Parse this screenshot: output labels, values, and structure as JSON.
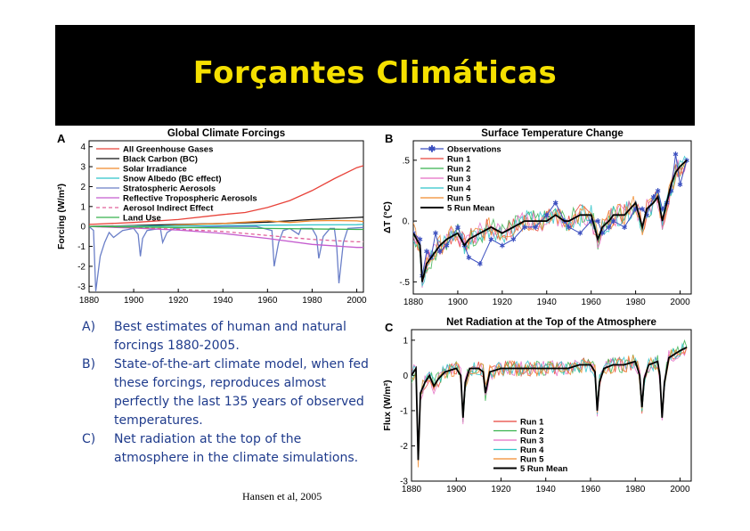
{
  "banner": {
    "title": "Forçantes Climáticas"
  },
  "notes": [
    {
      "letter": "A)",
      "text": "Best estimates of human and natural forcings 1880-2005."
    },
    {
      "letter": "B)",
      "text": "State-of-the-art climate model, when fed these forcings, reproduces almost perfectly the last 135 years of observed temperatures."
    },
    {
      "letter": "C)",
      "text": "Net radiation at the top of the atmosphere in the climate simulations."
    }
  ],
  "citation": "Hansen et al, 2005",
  "chart_data": [
    {
      "panel": "A",
      "type": "line",
      "title": "Global Climate Forcings",
      "xlabel": "",
      "ylabel": "Forcing (W/m²)",
      "xlim": [
        1880,
        2003
      ],
      "ylim": [
        -3.3,
        4.3
      ],
      "xticks": [
        1880,
        1900,
        1920,
        1940,
        1960,
        1980,
        2000
      ],
      "yticks": [
        -3,
        -2,
        -1,
        0,
        1,
        2,
        3,
        4
      ],
      "legend_position": "top-left",
      "series": [
        {
          "name": "All Greenhouse Gases",
          "color": "#e8433a",
          "dash": false,
          "points": [
            [
              1880,
              0.1
            ],
            [
              1900,
              0.2
            ],
            [
              1920,
              0.35
            ],
            [
              1940,
              0.6
            ],
            [
              1950,
              0.7
            ],
            [
              1960,
              0.95
            ],
            [
              1970,
              1.3
            ],
            [
              1980,
              1.8
            ],
            [
              1990,
              2.4
            ],
            [
              2000,
              2.95
            ],
            [
              2003,
              3.05
            ]
          ]
        },
        {
          "name": "Black Carbon (BC)",
          "color": "#111111",
          "dash": false,
          "points": [
            [
              1880,
              0.0
            ],
            [
              1900,
              0.05
            ],
            [
              1920,
              0.1
            ],
            [
              1940,
              0.15
            ],
            [
              1960,
              0.22
            ],
            [
              1980,
              0.35
            ],
            [
              2000,
              0.45
            ],
            [
              2003,
              0.47
            ]
          ]
        },
        {
          "name": "Solar Irradiance",
          "color": "#f08a2c",
          "dash": false,
          "points": [
            [
              1880,
              0.0
            ],
            [
              1900,
              0.03
            ],
            [
              1910,
              0.0
            ],
            [
              1920,
              0.08
            ],
            [
              1940,
              0.15
            ],
            [
              1950,
              0.22
            ],
            [
              1960,
              0.28
            ],
            [
              1970,
              0.2
            ],
            [
              1980,
              0.28
            ],
            [
              1990,
              0.3
            ],
            [
              2000,
              0.28
            ],
            [
              2003,
              0.25
            ]
          ]
        },
        {
          "name": "Snow Albedo (BC effect)",
          "color": "#2fc4c9",
          "dash": false,
          "points": [
            [
              1880,
              0.0
            ],
            [
              1920,
              0.03
            ],
            [
              1960,
              0.06
            ],
            [
              1980,
              0.08
            ],
            [
              2000,
              0.09
            ],
            [
              2003,
              0.1
            ]
          ]
        },
        {
          "name": "Stratospheric Aerosols",
          "color": "#6a7fc8",
          "dash": false,
          "points": [
            [
              1880,
              0.0
            ],
            [
              1882,
              -0.2
            ],
            [
              1883,
              -3.25
            ],
            [
              1885,
              -1.5
            ],
            [
              1887,
              -0.8
            ],
            [
              1889,
              -0.3
            ],
            [
              1891,
              -0.55
            ],
            [
              1895,
              -0.2
            ],
            [
              1900,
              -0.1
            ],
            [
              1902,
              -0.4
            ],
            [
              1903,
              -1.5
            ],
            [
              1904,
              -0.6
            ],
            [
              1906,
              -0.2
            ],
            [
              1912,
              -0.1
            ],
            [
              1913,
              -0.8
            ],
            [
              1915,
              -0.3
            ],
            [
              1918,
              -0.1
            ],
            [
              1925,
              -0.05
            ],
            [
              1940,
              0.0
            ],
            [
              1955,
              0.0
            ],
            [
              1962,
              -0.2
            ],
            [
              1963,
              -2.0
            ],
            [
              1965,
              -0.8
            ],
            [
              1967,
              -0.2
            ],
            [
              1970,
              -0.1
            ],
            [
              1974,
              -0.4
            ],
            [
              1975,
              -0.1
            ],
            [
              1980,
              -0.1
            ],
            [
              1982,
              -0.5
            ],
            [
              1983,
              -1.6
            ],
            [
              1985,
              -0.5
            ],
            [
              1988,
              -0.1
            ],
            [
              1990,
              -0.1
            ],
            [
              1991,
              -1.0
            ],
            [
              1992,
              -2.85
            ],
            [
              1994,
              -0.8
            ],
            [
              1996,
              -0.1
            ],
            [
              2003,
              -0.05
            ]
          ]
        },
        {
          "name": "Reflective Tropospheric Aerosols",
          "color": "#c45ccf",
          "dash": false,
          "points": [
            [
              1880,
              0.0
            ],
            [
              1900,
              -0.08
            ],
            [
              1920,
              -0.18
            ],
            [
              1940,
              -0.35
            ],
            [
              1960,
              -0.6
            ],
            [
              1980,
              -0.9
            ],
            [
              2000,
              -1.05
            ],
            [
              2003,
              -1.05
            ]
          ]
        },
        {
          "name": "Aerosol Indirect Effect",
          "color": "#e0609a",
          "dash": true,
          "points": [
            [
              1880,
              0.0
            ],
            [
              1900,
              -0.06
            ],
            [
              1920,
              -0.14
            ],
            [
              1940,
              -0.25
            ],
            [
              1960,
              -0.45
            ],
            [
              1980,
              -0.65
            ],
            [
              2000,
              -0.77
            ],
            [
              2003,
              -0.77
            ]
          ]
        },
        {
          "name": "Land Use",
          "color": "#38b24d",
          "dash": false,
          "points": [
            [
              1880,
              0.0
            ],
            [
              1920,
              -0.05
            ],
            [
              1960,
              -0.1
            ],
            [
              2000,
              -0.15
            ],
            [
              2003,
              -0.15
            ]
          ]
        }
      ]
    },
    {
      "panel": "B",
      "type": "line",
      "title": "Surface Temperature Change",
      "xlabel": "",
      "ylabel": "ΔT (°C)",
      "xlim": [
        1880,
        2005
      ],
      "ylim": [
        -0.6,
        0.66
      ],
      "xticks": [
        1880,
        1900,
        1920,
        1940,
        1960,
        1980,
        2000
      ],
      "yticks": [
        -0.5,
        0.0,
        0.5
      ],
      "ytick_labels": [
        "-.5",
        "0.",
        ".5"
      ],
      "legend_position": "top-left",
      "legend": [
        {
          "name": "Observations",
          "color": "#3b4fbf"
        },
        {
          "name": "Run 1",
          "color": "#e8433a"
        },
        {
          "name": "Run 2",
          "color": "#38b24d"
        },
        {
          "name": "Run 3",
          "color": "#e56cc4"
        },
        {
          "name": "Run 4",
          "color": "#2fc4c9"
        },
        {
          "name": "Run 5",
          "color": "#f08a2c"
        },
        {
          "name": "5 Run Mean",
          "color": "#000000"
        }
      ],
      "x": [
        1880,
        1883,
        1884,
        1886,
        1888,
        1890,
        1892,
        1895,
        1900,
        1903,
        1905,
        1910,
        1915,
        1920,
        1925,
        1930,
        1935,
        1940,
        1944,
        1948,
        1950,
        1955,
        1960,
        1963,
        1965,
        1968,
        1970,
        1975,
        1980,
        1983,
        1985,
        1988,
        1990,
        1992,
        1994,
        1996,
        1998,
        2000,
        2003
      ],
      "series": [
        {
          "name": "Observations",
          "color": "#3b4fbf",
          "values": [
            -0.1,
            -0.15,
            -0.45,
            -0.25,
            -0.3,
            -0.1,
            -0.25,
            -0.2,
            -0.05,
            -0.2,
            -0.3,
            -0.35,
            -0.15,
            -0.2,
            -0.15,
            -0.05,
            -0.05,
            0.05,
            0.15,
            0.0,
            -0.05,
            -0.1,
            0.0,
            0.0,
            -0.1,
            -0.05,
            0.0,
            -0.05,
            0.1,
            0.1,
            0.05,
            0.2,
            0.25,
            0.1,
            0.15,
            0.25,
            0.55,
            0.3,
            0.5
          ]
        },
        {
          "name": "5 Run Mean",
          "color": "#000000",
          "values": [
            -0.1,
            -0.2,
            -0.5,
            -0.35,
            -0.3,
            -0.25,
            -0.2,
            -0.15,
            -0.1,
            -0.2,
            -0.15,
            -0.1,
            -0.05,
            -0.1,
            -0.05,
            0.0,
            0.0,
            0.0,
            0.05,
            0.0,
            0.0,
            0.05,
            0.05,
            -0.15,
            -0.05,
            0.0,
            0.05,
            0.05,
            0.15,
            -0.05,
            0.1,
            0.15,
            0.2,
            0.0,
            0.15,
            0.3,
            0.4,
            0.45,
            0.5
          ]
        }
      ]
    },
    {
      "panel": "C",
      "type": "line",
      "title": "Net Radiation at the Top of the Atmosphere",
      "xlabel": "",
      "ylabel": "Flux (W/m²)",
      "xlim": [
        1880,
        2005
      ],
      "ylim": [
        -3.0,
        1.3
      ],
      "xticks": [
        1880,
        1900,
        1920,
        1940,
        1960,
        1980,
        2000
      ],
      "yticks": [
        -3,
        -2,
        -1,
        0,
        1
      ],
      "legend_position": "bottom-center",
      "legend": [
        {
          "name": "Run 1",
          "color": "#e8433a"
        },
        {
          "name": "Run 2",
          "color": "#38b24d"
        },
        {
          "name": "Run 3",
          "color": "#e56cc4"
        },
        {
          "name": "Run 4",
          "color": "#2fc4c9"
        },
        {
          "name": "Run 5",
          "color": "#f08a2c"
        },
        {
          "name": "5 Run Mean",
          "color": "#000000"
        }
      ],
      "x": [
        1880,
        1882,
        1883,
        1884,
        1886,
        1888,
        1890,
        1892,
        1895,
        1900,
        1902,
        1903,
        1904,
        1906,
        1910,
        1912,
        1913,
        1915,
        1920,
        1930,
        1940,
        1950,
        1955,
        1960,
        1962,
        1963,
        1964,
        1966,
        1970,
        1975,
        1980,
        1982,
        1983,
        1984,
        1986,
        1990,
        1991,
        1992,
        1993,
        1995,
        2000,
        2003
      ],
      "series": [
        {
          "name": "5 Run Mean",
          "color": "#000000",
          "values": [
            0.0,
            0.2,
            -2.4,
            -0.5,
            -0.2,
            0.0,
            -0.3,
            -0.1,
            0.1,
            0.2,
            0.0,
            -1.2,
            -0.2,
            0.2,
            0.2,
            0.1,
            -0.5,
            0.1,
            0.2,
            0.2,
            0.2,
            0.2,
            0.3,
            0.3,
            0.1,
            -1.0,
            -0.2,
            0.2,
            0.3,
            0.3,
            0.4,
            0.0,
            -0.9,
            -0.1,
            0.3,
            0.4,
            0.0,
            -1.2,
            -0.2,
            0.5,
            0.7,
            0.8
          ]
        }
      ]
    }
  ]
}
